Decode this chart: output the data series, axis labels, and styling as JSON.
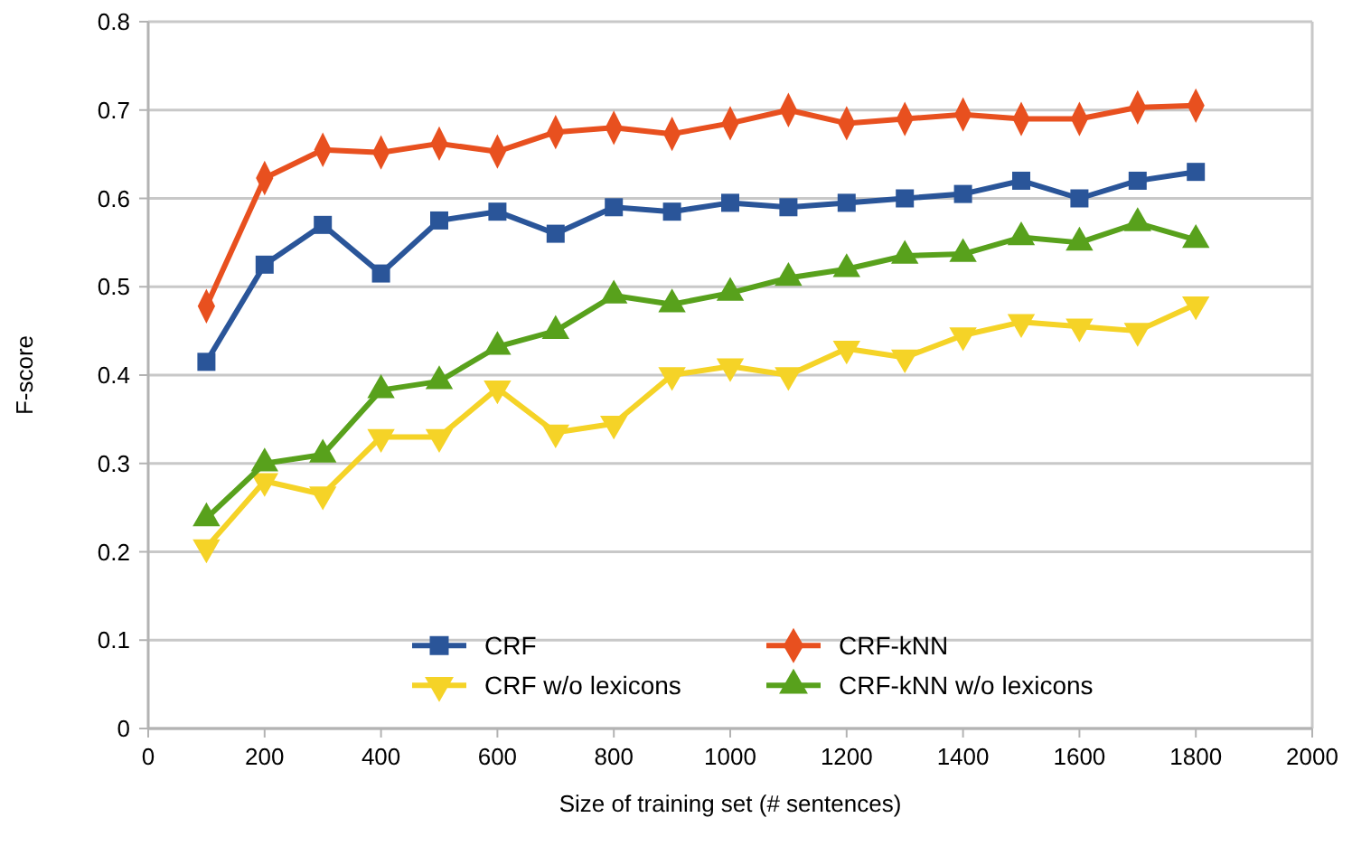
{
  "chart_data": {
    "type": "line",
    "xlabel": "Size of training set (# sentences)",
    "ylabel": "F-score",
    "x": [
      100,
      200,
      300,
      400,
      500,
      600,
      700,
      800,
      900,
      1000,
      1100,
      1200,
      1300,
      1400,
      1500,
      1600,
      1700,
      1800
    ],
    "series": [
      {
        "name": "CRF",
        "color": "#2a5599",
        "marker": "square",
        "values": [
          0.415,
          0.525,
          0.57,
          0.515,
          0.575,
          0.585,
          0.56,
          0.59,
          0.585,
          0.595,
          0.59,
          0.595,
          0.6,
          0.605,
          0.62,
          0.6,
          0.62,
          0.63
        ]
      },
      {
        "name": "CRF-kNN",
        "color": "#e8501f",
        "marker": "diamond",
        "values": [
          0.478,
          0.623,
          0.655,
          0.652,
          0.662,
          0.653,
          0.675,
          0.68,
          0.673,
          0.685,
          0.7,
          0.685,
          0.69,
          0.695,
          0.69,
          0.69,
          0.703,
          0.705
        ]
      },
      {
        "name": "CRF w/o lexicons",
        "color": "#f5d327",
        "marker": "triangle-down",
        "values": [
          0.205,
          0.28,
          0.265,
          0.33,
          0.33,
          0.385,
          0.335,
          0.345,
          0.4,
          0.41,
          0.4,
          0.43,
          0.42,
          0.445,
          0.46,
          0.455,
          0.45,
          0.48
        ]
      },
      {
        "name": "CRF-kNN w/o lexicons",
        "color": "#58a11c",
        "marker": "triangle",
        "values": [
          0.238,
          0.3,
          0.31,
          0.383,
          0.393,
          0.432,
          0.45,
          0.49,
          0.48,
          0.493,
          0.51,
          0.52,
          0.535,
          0.537,
          0.556,
          0.55,
          0.572,
          0.553
        ]
      }
    ],
    "xlim": [
      0,
      2000
    ],
    "xticks": [
      0,
      200,
      400,
      600,
      800,
      1000,
      1200,
      1400,
      1600,
      1800,
      2000
    ],
    "ylim": [
      0,
      0.8
    ],
    "yticks": [
      {
        "value": 0,
        "label": "0"
      },
      {
        "value": 0.1,
        "label": "0.1"
      },
      {
        "value": 0.2,
        "label": "0.2"
      },
      {
        "value": 0.3,
        "label": "0.3"
      },
      {
        "value": 0.4,
        "label": "0.4"
      },
      {
        "value": 0.5,
        "label": "0.5"
      },
      {
        "value": 0.6,
        "label": "0.6"
      },
      {
        "value": 0.7,
        "label": "0.7"
      },
      {
        "value": 0.8,
        "label": "0.8"
      }
    ],
    "grid": "y",
    "legend": "bottom",
    "line_style": "solid"
  }
}
